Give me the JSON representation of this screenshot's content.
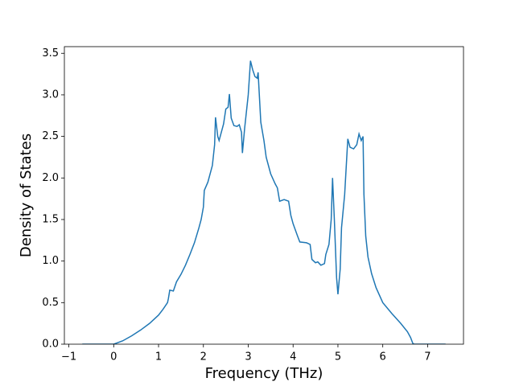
{
  "chart_data": {
    "type": "line",
    "xlabel": "Frequency (THz)",
    "ylabel": "Density of States",
    "color": "#1f77b4",
    "x": [
      -0.7,
      0,
      0.2,
      0.4,
      0.6,
      0.8,
      1.0,
      1.1,
      1.2,
      1.22,
      1.25,
      1.33,
      1.4,
      1.5,
      1.6,
      1.7,
      1.8,
      1.9,
      1.95,
      2.0,
      2.02,
      2.1,
      2.2,
      2.25,
      2.27,
      2.32,
      2.35,
      2.45,
      2.5,
      2.55,
      2.58,
      2.62,
      2.68,
      2.75,
      2.8,
      2.85,
      2.87,
      2.92,
      3.0,
      3.05,
      3.1,
      3.15,
      3.2,
      3.22,
      3.28,
      3.35,
      3.4,
      3.5,
      3.6,
      3.65,
      3.7,
      3.8,
      3.9,
      3.95,
      4.0,
      4.1,
      4.15,
      4.3,
      4.38,
      4.42,
      4.5,
      4.55,
      4.62,
      4.7,
      4.73,
      4.8,
      4.85,
      4.88,
      4.92,
      4.97,
      5.0,
      5.05,
      5.08,
      5.15,
      5.22,
      5.27,
      5.35,
      5.42,
      5.47,
      5.52,
      5.56,
      5.58,
      5.62,
      5.67,
      5.75,
      5.85,
      6.0,
      6.2,
      6.4,
      6.55,
      6.62,
      6.67,
      6.7,
      7.4
    ],
    "values": [
      0,
      0,
      0.04,
      0.1,
      0.17,
      0.25,
      0.35,
      0.42,
      0.5,
      0.55,
      0.65,
      0.64,
      0.75,
      0.84,
      0.95,
      1.08,
      1.22,
      1.4,
      1.5,
      1.65,
      1.85,
      1.95,
      2.15,
      2.4,
      2.73,
      2.5,
      2.45,
      2.65,
      2.83,
      2.85,
      3.01,
      2.72,
      2.63,
      2.62,
      2.64,
      2.55,
      2.3,
      2.6,
      3.0,
      3.41,
      3.3,
      3.22,
      3.2,
      3.27,
      2.67,
      2.45,
      2.25,
      2.05,
      1.93,
      1.88,
      1.72,
      1.74,
      1.72,
      1.55,
      1.45,
      1.3,
      1.23,
      1.22,
      1.2,
      1.02,
      0.98,
      0.99,
      0.95,
      0.97,
      1.08,
      1.2,
      1.5,
      2.0,
      1.5,
      0.8,
      0.6,
      0.9,
      1.4,
      1.8,
      2.47,
      2.37,
      2.35,
      2.4,
      2.53,
      2.45,
      2.5,
      1.8,
      1.3,
      1.05,
      0.85,
      0.68,
      0.5,
      0.37,
      0.25,
      0.15,
      0.08,
      0.01,
      0,
      0
    ],
    "xlim": [
      -1.1,
      7.8
    ],
    "xticks": [
      {
        "value": -1,
        "label": "−1"
      },
      0,
      1,
      2,
      3,
      4,
      5,
      6,
      7
    ],
    "ylim": [
      0,
      3.58
    ],
    "yticks": [
      {
        "value": 0,
        "label": "0.0"
      },
      0.5,
      {
        "value": 1,
        "label": "1.0"
      },
      1.5,
      {
        "value": 2,
        "label": "2.0"
      },
      2.5,
      {
        "value": 3,
        "label": "3.0"
      },
      3.5
    ],
    "grid": false
  }
}
